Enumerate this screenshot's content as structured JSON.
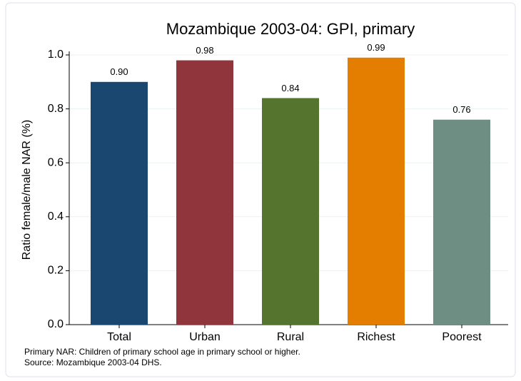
{
  "chart_data": {
    "type": "bar",
    "title": "Mozambique 2003-04: GPI, primary",
    "ylabel": "Ratio female/male NAR (%)",
    "categories": [
      "Total",
      "Urban",
      "Rural",
      "Richest",
      "Poorest"
    ],
    "values": [
      0.9,
      0.98,
      0.84,
      0.99,
      0.76
    ],
    "value_labels": [
      "0.90",
      "0.98",
      "0.84",
      "0.99",
      "0.76"
    ],
    "colors": [
      "#1a476f",
      "#90353b",
      "#55752f",
      "#e37e00",
      "#6e8e84"
    ],
    "ylim": [
      0,
      1
    ],
    "yticks": [
      {
        "value": 0,
        "label": "0.0"
      },
      0.2,
      0.4,
      0.6,
      0.8,
      {
        "value": 1,
        "label": "1.0"
      }
    ],
    "grid": true,
    "notes": [
      "Primary NAR: Children of primary school age in primary school or higher.",
      "Source: Mozambique 2003-04 DHS."
    ]
  }
}
